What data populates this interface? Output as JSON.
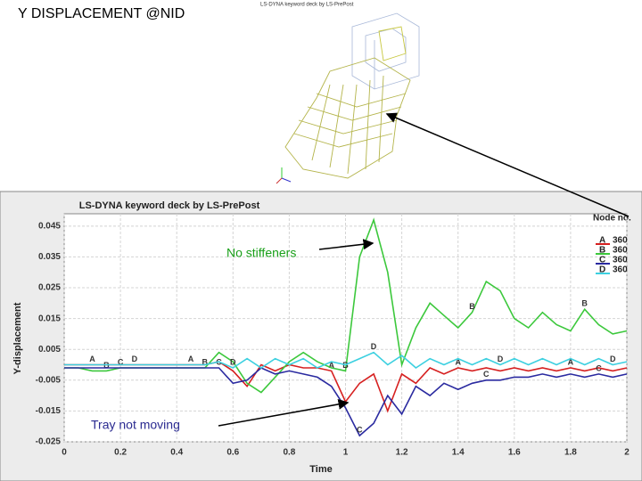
{
  "slide_title": "Y DISPLACEMENT @NID",
  "model_caption": "LS-DYNA keyword deck by LS-PrePost",
  "chart_data": {
    "type": "line",
    "title": "LS-DYNA keyword deck by LS-PrePost",
    "xlabel": "Time",
    "ylabel": "Y-displacement",
    "legend_title": "Node no.",
    "annotations": [
      "No stiffeners",
      "Tray not moving"
    ],
    "x": [
      0,
      0.05,
      0.1,
      0.15,
      0.2,
      0.25,
      0.3,
      0.35,
      0.4,
      0.45,
      0.5,
      0.55,
      0.6,
      0.65,
      0.7,
      0.75,
      0.8,
      0.85,
      0.9,
      0.95,
      1,
      1.05,
      1.1,
      1.15,
      1.2,
      1.25,
      1.3,
      1.35,
      1.4,
      1.45,
      1.5,
      1.55,
      1.6,
      1.65,
      1.7,
      1.75,
      1.8,
      1.85,
      1.9,
      1.95,
      2
    ],
    "series": [
      {
        "name": "A",
        "node": "360",
        "color": "#d62020",
        "values": [
          0,
          0,
          0,
          0,
          0,
          0,
          0,
          0,
          0,
          0,
          0,
          0.001,
          -0.002,
          -0.007,
          0,
          -0.002,
          0,
          -0.001,
          -0.001,
          -0.002,
          -0.012,
          -0.006,
          -0.003,
          -0.015,
          -0.003,
          -0.006,
          -0.001,
          -0.003,
          -0.001,
          -0.002,
          -0.001,
          -0.002,
          -0.001,
          -0.002,
          -0.001,
          -0.002,
          -0.001,
          -0.002,
          -0.001,
          -0.002,
          -0.001
        ]
      },
      {
        "name": "B",
        "node": "360",
        "color": "#3cc83c",
        "values": [
          -0.001,
          -0.001,
          -0.002,
          -0.002,
          -0.001,
          -0.001,
          -0.001,
          -0.001,
          -0.001,
          -0.001,
          -0.001,
          0.004,
          0.001,
          -0.006,
          -0.009,
          -0.004,
          0.001,
          0.004,
          0.001,
          -0.001,
          -0.002,
          0.035,
          0.047,
          0.03,
          0,
          0.012,
          0.02,
          0.016,
          0.012,
          0.017,
          0.027,
          0.024,
          0.015,
          0.012,
          0.017,
          0.013,
          0.011,
          0.018,
          0.013,
          0.01,
          0.011
        ]
      },
      {
        "name": "C",
        "node": "360",
        "color": "#2a2aa0",
        "values": [
          -0.001,
          -0.001,
          -0.001,
          -0.001,
          -0.001,
          -0.001,
          -0.001,
          -0.001,
          -0.001,
          -0.001,
          -0.001,
          -0.001,
          -0.006,
          -0.005,
          -0.001,
          -0.003,
          -0.002,
          -0.003,
          -0.004,
          -0.007,
          -0.014,
          -0.023,
          -0.019,
          -0.01,
          -0.016,
          -0.007,
          -0.01,
          -0.006,
          -0.008,
          -0.006,
          -0.005,
          -0.005,
          -0.004,
          -0.004,
          -0.003,
          -0.004,
          -0.003,
          -0.004,
          -0.003,
          -0.004,
          -0.003
        ]
      },
      {
        "name": "D",
        "node": "360",
        "color": "#3cd0e0",
        "values": [
          0,
          0,
          0,
          0,
          0,
          0,
          0,
          0,
          0,
          0,
          0,
          0.001,
          -0.001,
          0.002,
          -0.001,
          0.002,
          0,
          0.002,
          -0.001,
          0.001,
          0,
          0.002,
          0.004,
          0,
          0.003,
          -0.001,
          0.002,
          0,
          0.002,
          0,
          0.002,
          0,
          0.002,
          0,
          0.002,
          0,
          0.002,
          0,
          0.002,
          0,
          0.001
        ]
      }
    ],
    "xlim": [
      0,
      2
    ],
    "ylim": [
      -0.025,
      0.049
    ],
    "xticks": [
      0,
      0.2,
      0.4,
      0.6,
      0.8,
      1,
      1.2,
      1.4,
      1.6,
      1.8,
      2
    ],
    "yticks": [
      -0.025,
      -0.015,
      -0.005,
      0.005,
      0.015,
      0.025,
      0.035,
      0.045
    ],
    "grid": true
  }
}
